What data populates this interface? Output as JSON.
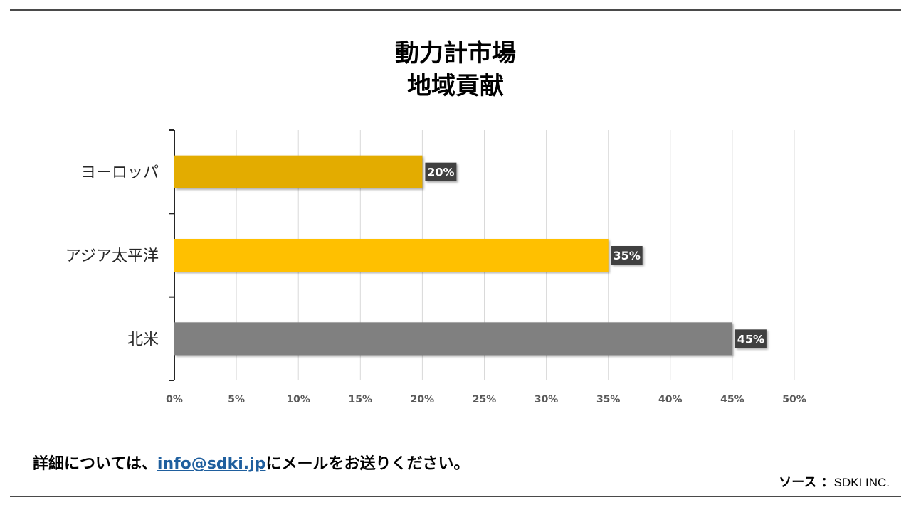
{
  "title": {
    "line1": "動力計市場",
    "line2": "地域貢献"
  },
  "chart_data": {
    "type": "bar",
    "orientation": "horizontal",
    "title": "動力計市場 地域貢献",
    "categories": [
      "ヨーロッパ",
      "アジア太平洋",
      "北米"
    ],
    "values": [
      20,
      35,
      45
    ],
    "data_labels": [
      "20%",
      "35%",
      "45%"
    ],
    "bar_colors": [
      "#E3AC00",
      "#FFC000",
      "#808080"
    ],
    "xlim": [
      0,
      50
    ],
    "x_ticks": [
      0,
      5,
      10,
      15,
      20,
      25,
      30,
      35,
      40,
      45,
      50
    ],
    "x_tick_labels": [
      "0%",
      "5%",
      "10%",
      "15%",
      "20%",
      "25%",
      "30%",
      "35%",
      "40%",
      "45%",
      "50%"
    ],
    "xlabel": "",
    "ylabel": "",
    "grid": true,
    "legend": "none",
    "data_label_bg": "#404040",
    "grid_color": "#D9D9D9",
    "axis_color": "#262626"
  },
  "footer": {
    "contact_prefix": "詳細については、",
    "contact_email": "info@sdki.jp",
    "contact_suffix": "にメールをお送りください。",
    "source_label": "ソース ：",
    "source_value": "SDKI INC."
  }
}
